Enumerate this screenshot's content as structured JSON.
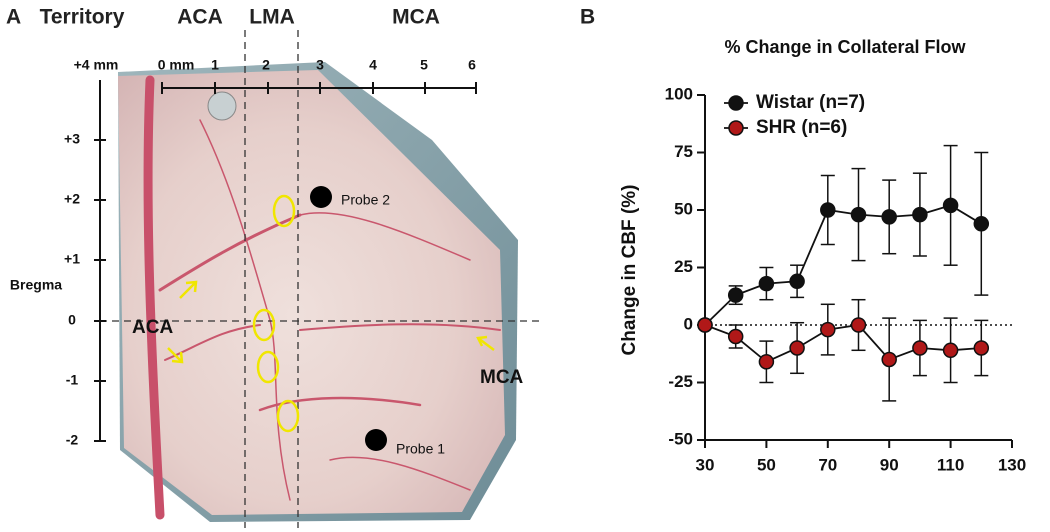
{
  "panel_a": {
    "label": "A",
    "territory_header": [
      "Territory",
      "ACA",
      "LMA",
      "MCA"
    ],
    "ml_scale": [
      "+4 mm",
      "0 mm",
      "1",
      "2",
      "3",
      "4",
      "5",
      "6"
    ],
    "ap_scale": [
      "+3",
      "+2",
      "+1",
      "Bregma",
      "0",
      "-1",
      "-2"
    ],
    "probes": [
      "Probe 2",
      "Probe 1"
    ],
    "vessels": [
      "ACA",
      "MCA"
    ]
  },
  "chart_data": {
    "type": "line",
    "panel_label": "B",
    "title": "% Change in  Collateral Flow",
    "y_label": "Change in CBF (%)",
    "x": [
      30,
      40,
      50,
      60,
      70,
      80,
      90,
      100,
      110,
      120
    ],
    "series": [
      {
        "name": "Wistar (n=7)",
        "color": "#111111",
        "values": [
          0,
          13,
          18,
          19,
          50,
          48,
          47,
          48,
          52,
          44
        ],
        "errors": [
          0,
          4,
          7,
          7,
          15,
          20,
          16,
          18,
          26,
          31
        ]
      },
      {
        "name": "SHR (n=6)",
        "color": "#b01818",
        "values": [
          0,
          -5,
          -16,
          -10,
          -2,
          0,
          -15,
          -10,
          -11,
          -10
        ],
        "errors": [
          0,
          5,
          9,
          11,
          11,
          11,
          18,
          12,
          14,
          12
        ]
      }
    ],
    "xlim": [
      30,
      130
    ],
    "xticks": [
      30,
      50,
      70,
      90,
      110,
      130
    ],
    "ylim": [
      -50,
      100
    ],
    "yticks": [
      -50,
      -25,
      0,
      25,
      50,
      75,
      100
    ],
    "reference_line": 0,
    "grid": false,
    "legend": "upper left"
  }
}
